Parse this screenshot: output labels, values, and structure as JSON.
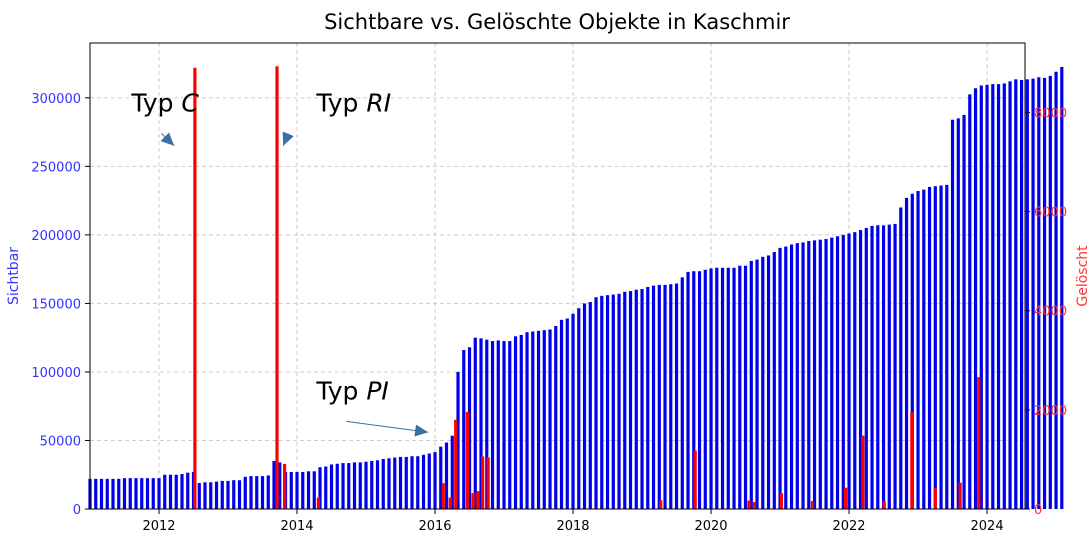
{
  "chart_data": {
    "type": "bar",
    "title": "Sichtbare vs. Gelöschte Objekte in Kaschmir",
    "ylabel_left": "Sichtbar",
    "ylabel_right": "Gelöscht",
    "xlim": [
      2011.0,
      2024.55
    ],
    "ylim_left": [
      0,
      340000
    ],
    "ylim_right": [
      0,
      9400
    ],
    "x_ticks": [
      2012,
      2014,
      2016,
      2018,
      2020,
      2022,
      2024
    ],
    "y_ticks_left": [
      0,
      50000,
      100000,
      150000,
      200000,
      250000,
      300000
    ],
    "y_ticks_right": [
      0,
      2000,
      4000,
      6000,
      8000
    ],
    "grid": true,
    "colors": {
      "sichtbar": "#0000ee",
      "geloescht": "#ff0000",
      "left_axis": "#3333ff",
      "right_axis": "#ff3333",
      "arrow": "#3a6ea5"
    },
    "series": [
      {
        "name": "Sichtbar",
        "axis": "left",
        "start": [
          2011,
          1
        ],
        "values": [
          22000,
          22000,
          22000,
          22000,
          22000,
          22000,
          22500,
          22500,
          22500,
          22500,
          22500,
          22500,
          22500,
          25000,
          25000,
          25000,
          25500,
          26500,
          27000,
          19000,
          19500,
          19500,
          20000,
          20500,
          20500,
          21000,
          21000,
          23500,
          24000,
          24000,
          24000,
          24500,
          35000,
          34000,
          27000,
          27000,
          27000,
          27000,
          27500,
          27500,
          30500,
          31000,
          32500,
          33000,
          33500,
          33500,
          34000,
          34000,
          34500,
          35000,
          35500,
          36500,
          37000,
          37500,
          38000,
          38000,
          38500,
          38500,
          39500,
          40500,
          41500,
          45500,
          48500,
          53500,
          100000,
          116000,
          118000,
          125000,
          124500,
          123500,
          122500,
          123000,
          122500,
          122500,
          126000,
          127000,
          129000,
          129500,
          130000,
          130500,
          131000,
          133500,
          138000,
          139000,
          142500,
          146500,
          150000,
          151000,
          154500,
          155500,
          156000,
          156500,
          157000,
          158500,
          159000,
          160000,
          160500,
          162000,
          163000,
          163500,
          163500,
          164000,
          164500,
          169000,
          173000,
          173500,
          173500,
          174500,
          175500,
          176000,
          176000,
          176000,
          176000,
          177500,
          177500,
          181000,
          182000,
          184000,
          185000,
          187500,
          190500,
          191500,
          193000,
          194000,
          194500,
          195500,
          196000,
          196500,
          197000,
          198000,
          199000,
          200000,
          201000,
          202000,
          203500,
          205000,
          206500,
          207000,
          207000,
          207500,
          208000,
          220000,
          227000,
          230000,
          232000,
          233000,
          235000,
          235500,
          236000,
          236500,
          284000,
          285000,
          287500,
          302500,
          307000,
          309000,
          309500,
          310000,
          310000,
          310500,
          312000,
          313500,
          313000,
          313500,
          314000,
          315000,
          314500,
          316000,
          319000,
          322500
        ]
      },
      {
        "name": "Gelöscht",
        "axis": "right",
        "spikes": [
          {
            "x": 2012.52,
            "value": 8900
          },
          {
            "x": 2013.71,
            "value": 8930
          },
          {
            "x": 2013.82,
            "value": 910
          },
          {
            "x": 2014.31,
            "value": 230
          },
          {
            "x": 2016.12,
            "value": 520
          },
          {
            "x": 2016.22,
            "value": 230
          },
          {
            "x": 2016.3,
            "value": 1800
          },
          {
            "x": 2016.47,
            "value": 1960
          },
          {
            "x": 2016.55,
            "value": 320
          },
          {
            "x": 2016.62,
            "value": 360
          },
          {
            "x": 2016.69,
            "value": 1060
          },
          {
            "x": 2016.77,
            "value": 1040
          },
          {
            "x": 2019.27,
            "value": 180
          },
          {
            "x": 2019.77,
            "value": 1180
          },
          {
            "x": 2020.55,
            "value": 170
          },
          {
            "x": 2020.63,
            "value": 140
          },
          {
            "x": 2021.02,
            "value": 320
          },
          {
            "x": 2021.47,
            "value": 160
          },
          {
            "x": 2021.95,
            "value": 430
          },
          {
            "x": 2022.2,
            "value": 1480
          },
          {
            "x": 2022.51,
            "value": 150
          },
          {
            "x": 2022.91,
            "value": 1950
          },
          {
            "x": 2023.25,
            "value": 420
          },
          {
            "x": 2023.61,
            "value": 530
          },
          {
            "x": 2023.88,
            "value": 2660
          }
        ]
      }
    ],
    "annotations": [
      {
        "prefix": "Typ ",
        "letters": "C",
        "text_x": 2011.6,
        "text_value": 290000,
        "arrow_x": 2012.22,
        "arrow_value": 265000
      },
      {
        "prefix": "Typ ",
        "letters": "RI",
        "text_x": 2014.28,
        "text_value": 290000,
        "arrow_x": 2013.8,
        "arrow_value": 265000
      },
      {
        "prefix": "Typ ",
        "letters": "PI",
        "text_x": 2014.28,
        "text_value": 80000,
        "arrow_x": 2015.9,
        "arrow_value": 56000
      }
    ]
  }
}
